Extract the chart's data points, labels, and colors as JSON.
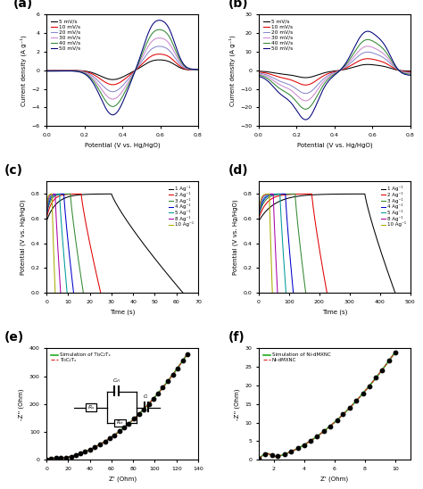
{
  "panel_a": {
    "title": "(a)",
    "xlabel": "Potential (V vs. Hg/HgO)",
    "ylabel": "Current density (A g⁻¹)",
    "ylim": [
      -6,
      6
    ],
    "xlim": [
      0.0,
      0.8
    ],
    "scan_rates": [
      "5 mV/s",
      "10 mV/s",
      "20 mV/s",
      "30 mV/s",
      "40 mV/s",
      "50 mV/s"
    ],
    "colors": [
      "#000000",
      "#e00000",
      "#8888cc",
      "#cc88cc",
      "#338833",
      "#000077"
    ],
    "amplitudes": [
      1.0,
      1.55,
      2.3,
      3.1,
      3.9,
      4.8
    ]
  },
  "panel_b": {
    "title": "(b)",
    "xlabel": "Potential (V vs. Hg/HgO)",
    "ylabel": "Current density (A g⁻¹)",
    "ylim": [
      -30,
      30
    ],
    "xlim": [
      0.0,
      0.8
    ],
    "scan_rates": [
      "5 mV/s",
      "10 mV/s",
      "20 mV/s",
      "30 mV/s",
      "40 mV/s",
      "50 mV/s"
    ],
    "colors": [
      "#000000",
      "#e00000",
      "#8888cc",
      "#cc88cc",
      "#338833",
      "#000077"
    ],
    "amplitudes": [
      3.5,
      7.0,
      11.0,
      14.5,
      18.5,
      23.5
    ]
  },
  "panel_c": {
    "title": "(c)",
    "xlabel": "Time (s)",
    "ylabel": "Potential (V vs. Hg/HgO)",
    "ylim": [
      0.0,
      0.9
    ],
    "xlim": [
      0,
      70
    ],
    "xticks": [
      0,
      10,
      20,
      30,
      40,
      50,
      60
    ],
    "current_densities": [
      "1 Ag⁻¹",
      "2 Ag⁻¹",
      "3 Ag⁻¹",
      "4 Ag⁻¹",
      "5 Ag⁻¹",
      "8 Ag⁻¹",
      "10 Ag⁻¹"
    ],
    "colors": [
      "#000000",
      "#e00000",
      "#338833",
      "#0000cc",
      "#009999",
      "#aa00aa",
      "#aaaa00"
    ],
    "charge_times": [
      30,
      16,
      11,
      8,
      6,
      4,
      2.5
    ],
    "discharge_times": [
      33,
      9,
      6,
      4.5,
      3.5,
      2.5,
      1.5
    ],
    "v_start": [
      0.58,
      0.6,
      0.62,
      0.62,
      0.62,
      0.62,
      0.62
    ],
    "v_top": [
      0.8,
      0.8,
      0.8,
      0.8,
      0.8,
      0.8,
      0.8
    ]
  },
  "panel_d": {
    "title": "(d)",
    "xlabel": "Time (s)",
    "ylabel": "Potential (V vs. Hg/HgO)",
    "ylim": [
      0.0,
      0.9
    ],
    "xlim": [
      0,
      500
    ],
    "xticks": [
      0,
      100,
      200,
      300,
      400,
      500
    ],
    "current_densities": [
      "1 Ag⁻¹",
      "2 Ag⁻¹",
      "3 Ag⁻¹",
      "4 Ag⁻¹",
      "5 Ag⁻¹",
      "8 Ag⁻¹",
      "10 Ag⁻¹"
    ],
    "colors": [
      "#000000",
      "#e00000",
      "#338833",
      "#0000cc",
      "#009999",
      "#aa00aa",
      "#aaaa00"
    ],
    "charge_times": [
      350,
      175,
      120,
      88,
      70,
      48,
      35
    ],
    "discharge_times": [
      100,
      50,
      35,
      26,
      20,
      14,
      10
    ],
    "v_start": [
      0.58,
      0.6,
      0.62,
      0.62,
      0.62,
      0.62,
      0.62
    ],
    "v_top": [
      0.8,
      0.8,
      0.8,
      0.8,
      0.8,
      0.8,
      0.8
    ]
  },
  "panel_e": {
    "title": "(e)",
    "xlabel": "Z' (Ohm)",
    "ylabel": "-Z'' (Ohm)",
    "xlim": [
      0,
      140
    ],
    "ylim": [
      0,
      400
    ],
    "yticks": [
      0,
      100,
      200,
      300,
      400
    ],
    "label_data": "Ti₃C₂Tₓ",
    "label_sim": "Simulation of Ti₃C₂Tₓ"
  },
  "panel_f": {
    "title": "(f)",
    "xlabel": "Z' (Ohm)",
    "ylabel": "-Z'' (Ohm)",
    "xlim": [
      1,
      11
    ],
    "ylim": [
      0,
      30
    ],
    "label_data": "Ni-dMXNC",
    "label_sim": "Simulation of Ni-dMXNC"
  }
}
